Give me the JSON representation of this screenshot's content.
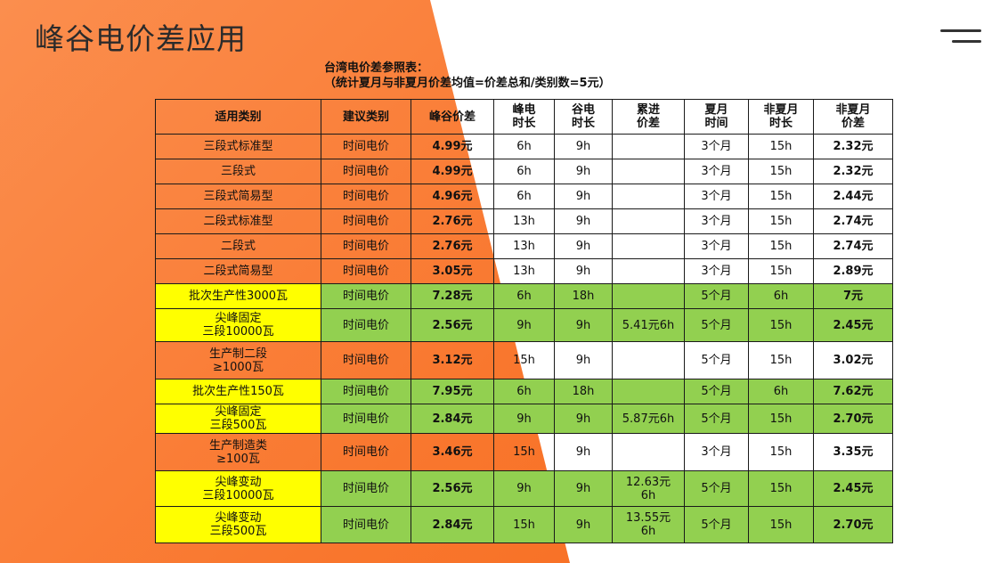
{
  "header": {
    "title": "峰谷电价差应用",
    "menu_icon": "menu-icon"
  },
  "subtitle": {
    "line1": "台湾电价差参照表：",
    "line2": "（统计夏月与非夏月价差均值=价差总和/类别数=5元）"
  },
  "table": {
    "columns": [
      "适用类别",
      "建议类别",
      "峰谷价差",
      "峰电\n时长",
      "谷电\n时长",
      "累进\n价差",
      "夏月\n时间",
      "非夏月\n时长",
      "非夏月\n价差"
    ],
    "rows": [
      {
        "cat": "三段式标准型",
        "type": "时间电价",
        "diff": "4.99元",
        "peak": "6h",
        "valley": "9h",
        "prog": "",
        "summer": "3个月",
        "nonsummer_hours": "15h",
        "nonsummer_diff": "2.32元"
      },
      {
        "cat": "三段式",
        "type": "时间电价",
        "diff": "4.99元",
        "peak": "6h",
        "valley": "9h",
        "prog": "",
        "summer": "3个月",
        "nonsummer_hours": "15h",
        "nonsummer_diff": "2.32元"
      },
      {
        "cat": "三段式简易型",
        "type": "时间电价",
        "diff": "4.96元",
        "peak": "6h",
        "valley": "9h",
        "prog": "",
        "summer": "3个月",
        "nonsummer_hours": "15h",
        "nonsummer_diff": "2.44元"
      },
      {
        "cat": "二段式标准型",
        "type": "时间电价",
        "diff": "2.76元",
        "peak": "13h",
        "valley": "9h",
        "prog": "",
        "summer": "3个月",
        "nonsummer_hours": "15h",
        "nonsummer_diff": "2.74元"
      },
      {
        "cat": "二段式",
        "type": "时间电价",
        "diff": "2.76元",
        "peak": "13h",
        "valley": "9h",
        "prog": "",
        "summer": "3个月",
        "nonsummer_hours": "15h",
        "nonsummer_diff": "2.74元"
      },
      {
        "cat": "二段式简易型",
        "type": "时间电价",
        "diff": "3.05元",
        "peak": "13h",
        "valley": "9h",
        "prog": "",
        "summer": "3个月",
        "nonsummer_hours": "15h",
        "nonsummer_diff": "2.89元"
      },
      {
        "cat": "批次生产性3000瓦",
        "type": "时间电价",
        "diff": "7.28元",
        "peak": "6h",
        "valley": "18h",
        "prog": "",
        "summer": "5个月",
        "nonsummer_hours": "6h",
        "nonsummer_diff": "7元"
      },
      {
        "cat": "尖峰固定\n三段10000瓦",
        "type": "时间电价",
        "diff": "2.56元",
        "peak": "9h",
        "valley": "9h",
        "prog": "5.41元6h",
        "summer": "5个月",
        "nonsummer_hours": "15h",
        "nonsummer_diff": "2.45元"
      },
      {
        "cat": "生产制二段\n≥1000瓦",
        "type": "时间电价",
        "diff": "3.12元",
        "peak": "15h",
        "valley": "9h",
        "prog": "",
        "summer": "5个月",
        "nonsummer_hours": "15h",
        "nonsummer_diff": "3.02元"
      },
      {
        "cat": "批次生产性150瓦",
        "type": "时间电价",
        "diff": "7.95元",
        "peak": "6h",
        "valley": "18h",
        "prog": "",
        "summer": "5个月",
        "nonsummer_hours": "6h",
        "nonsummer_diff": "7.62元"
      },
      {
        "cat": "尖峰固定\n三段500瓦",
        "type": "时间电价",
        "diff": "2.84元",
        "peak": "9h",
        "valley": "9h",
        "prog": "5.87元6h",
        "summer": "5个月",
        "nonsummer_hours": "15h",
        "nonsummer_diff": "2.70元"
      },
      {
        "cat": "生产制造类\n≥100瓦",
        "type": "时间电价",
        "diff": "3.46元",
        "peak": "15h",
        "valley": "9h",
        "prog": "",
        "summer": "3个月",
        "nonsummer_hours": "15h",
        "nonsummer_diff": "3.35元"
      },
      {
        "cat": "尖峰变动\n三段10000瓦",
        "type": "时间电价",
        "diff": "2.56元",
        "peak": "9h",
        "valley": "9h",
        "prog": "12.63元\n6h",
        "summer": "5个月",
        "nonsummer_hours": "15h",
        "nonsummer_diff": "2.45元"
      },
      {
        "cat": "尖峰变动\n三段500瓦",
        "type": "时间电价",
        "diff": "2.84元",
        "peak": "15h",
        "valley": "9h",
        "prog": "13.55元\n6h",
        "summer": "5个月",
        "nonsummer_hours": "15h",
        "nonsummer_diff": "2.70元"
      }
    ]
  },
  "colors": {
    "orange_bg": "#f9772e",
    "category_fill": "#ffff00",
    "green_fill": "#92d050",
    "orange_fill": "#f76e1e"
  }
}
